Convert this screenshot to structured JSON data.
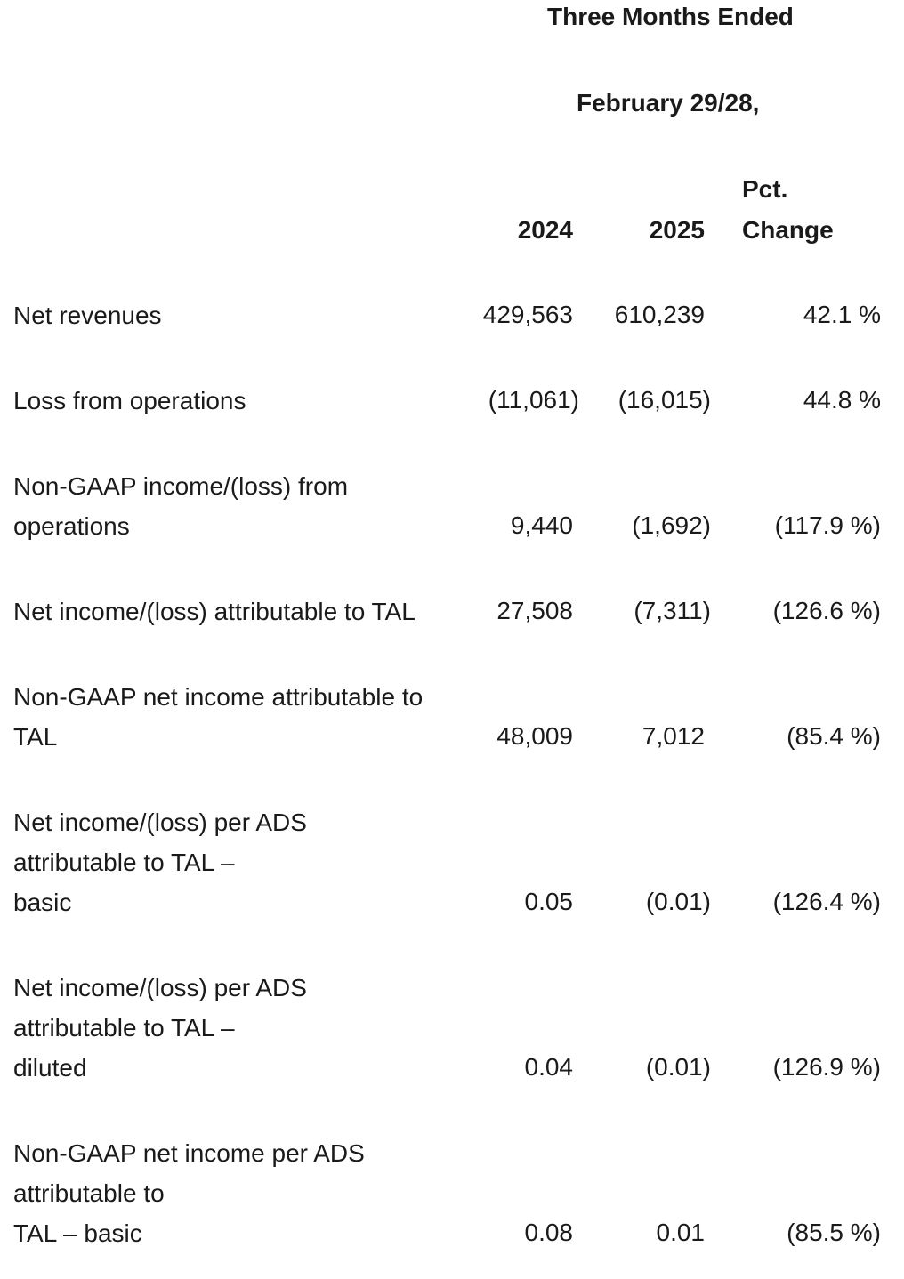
{
  "header": {
    "period_title": "Three Months Ended",
    "period_date": "February 29/28,",
    "col_2024": "2024",
    "col_2025": "2025",
    "col_pct_line1": "Pct.",
    "col_pct_line2": "Change"
  },
  "rows": [
    {
      "label_lines": [
        "Net revenues"
      ],
      "v2024": "429,563",
      "v2025": "610,239",
      "pct": "42.1 %"
    },
    {
      "label_lines": [
        "Loss from operations"
      ],
      "v2024": "(11,061)",
      "v2025": "(16,015)",
      "pct": "44.8 %"
    },
    {
      "label_lines": [
        "Non-GAAP income/(loss) from",
        "operations"
      ],
      "v2024": "9,440",
      "v2025": "(1,692)",
      "pct": "(117.9 %)"
    },
    {
      "label_lines": [
        "Net income/(loss) attributable to TAL"
      ],
      "v2024": "27,508",
      "v2025": "(7,311)",
      "pct": "(126.6 %)"
    },
    {
      "label_lines": [
        "Non-GAAP net income attributable to",
        "TAL"
      ],
      "v2024": "48,009",
      "v2025": "7,012",
      "pct": "(85.4 %)"
    },
    {
      "label_lines": [
        "Net income/(loss) per ADS",
        "attributable to TAL –",
        "basic"
      ],
      "v2024": "0.05",
      "v2025": "(0.01)",
      "pct": "(126.4 %)"
    },
    {
      "label_lines": [
        "Net income/(loss) per ADS",
        "attributable to TAL –",
        "diluted"
      ],
      "v2024": "0.04",
      "v2025": "(0.01)",
      "pct": "(126.9 %)"
    },
    {
      "label_lines": [
        "Non-GAAP net income per ADS",
        "attributable to",
        "TAL – basic"
      ],
      "v2024": "0.08",
      "v2025": "0.01",
      "pct": "(85.5 %)"
    }
  ]
}
